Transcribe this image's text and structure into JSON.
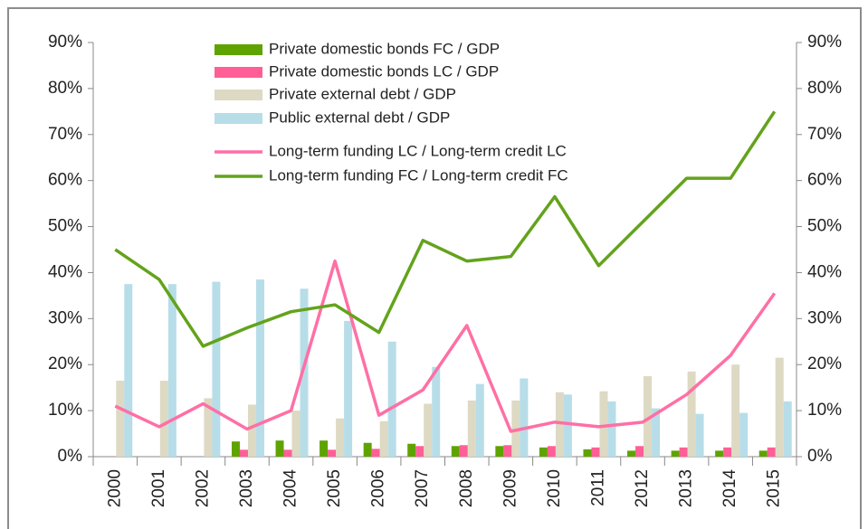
{
  "chart_data": {
    "type": "bar",
    "categories": [
      "2000",
      "2001",
      "2002",
      "2003",
      "2004",
      "2005",
      "2006",
      "2007",
      "2008",
      "2009",
      "2010",
      "2011",
      "2012",
      "2013",
      "2014",
      "2015"
    ],
    "series": [
      {
        "name": "Private domestic bonds FC / GDP",
        "type": "bar",
        "color": "#5fa300",
        "values": [
          null,
          null,
          null,
          3.3,
          3.5,
          3.5,
          3.0,
          2.8,
          2.3,
          2.3,
          2.0,
          1.6,
          1.3,
          1.3,
          1.3,
          1.3
        ]
      },
      {
        "name": "Private domestic bonds LC / GDP",
        "type": "bar",
        "color": "#ff5f96",
        "values": [
          null,
          null,
          null,
          1.5,
          1.5,
          1.5,
          1.7,
          2.3,
          2.5,
          2.5,
          2.3,
          2.0,
          2.3,
          2.0,
          2.0,
          2.0
        ]
      },
      {
        "name": "Private external debt / GDP",
        "type": "bar",
        "color": "#ddd9c3",
        "values": [
          16.5,
          16.5,
          12.7,
          11.3,
          10.0,
          8.3,
          7.7,
          11.5,
          12.2,
          12.2,
          14.0,
          14.2,
          17.5,
          18.5,
          20.0,
          21.5
        ]
      },
      {
        "name": "Public external debt / GDP",
        "type": "bar",
        "color": "#b7dde8",
        "values": [
          37.5,
          37.5,
          38.0,
          38.5,
          36.5,
          29.5,
          25.0,
          19.5,
          15.8,
          17.0,
          13.5,
          12.0,
          10.5,
          9.3,
          9.5,
          12.0
        ]
      },
      {
        "name": "Long-term funding LC / Long-term credit LC",
        "type": "line",
        "axis": "y2",
        "color": "#ff6fa5",
        "values": [
          11.0,
          6.5,
          11.5,
          6.0,
          10.0,
          42.5,
          9.0,
          14.5,
          28.5,
          5.5,
          7.5,
          6.5,
          7.5,
          13.5,
          22.0,
          35.5
        ]
      },
      {
        "name": "Long-term funding FC / Long-term credit FC",
        "type": "line",
        "axis": "y2",
        "color": "#63a31c",
        "values": [
          45.0,
          38.5,
          24.0,
          28.0,
          31.5,
          33.0,
          27.0,
          47.0,
          42.5,
          43.5,
          56.5,
          41.5,
          51.0,
          60.5,
          60.5,
          75.0
        ]
      }
    ],
    "ylim": [
      0,
      90
    ],
    "yticks": [
      {
        "value": 0,
        "label": "0%"
      },
      {
        "value": 10,
        "label": "10%"
      },
      {
        "value": 20,
        "label": "20%"
      },
      {
        "value": 30,
        "label": "30%"
      },
      {
        "value": 40,
        "label": "40%"
      },
      {
        "value": 50,
        "label": "50%"
      },
      {
        "value": 60,
        "label": "60%"
      },
      {
        "value": 70,
        "label": "70%"
      },
      {
        "value": 80,
        "label": "80%"
      },
      {
        "value": 90,
        "label": "90%"
      }
    ],
    "y2lim": [
      0,
      90
    ],
    "y2ticks": [
      {
        "value": 0,
        "label": "0%"
      },
      {
        "value": 10,
        "label": "10%"
      },
      {
        "value": 20,
        "label": "20%"
      },
      {
        "value": 30,
        "label": "30%"
      },
      {
        "value": 40,
        "label": "40%"
      },
      {
        "value": 50,
        "label": "50%"
      },
      {
        "value": 60,
        "label": "60%"
      },
      {
        "value": 70,
        "label": "70%"
      },
      {
        "value": 80,
        "label": "80%"
      },
      {
        "value": 90,
        "label": "90%"
      }
    ],
    "legend": "top"
  }
}
